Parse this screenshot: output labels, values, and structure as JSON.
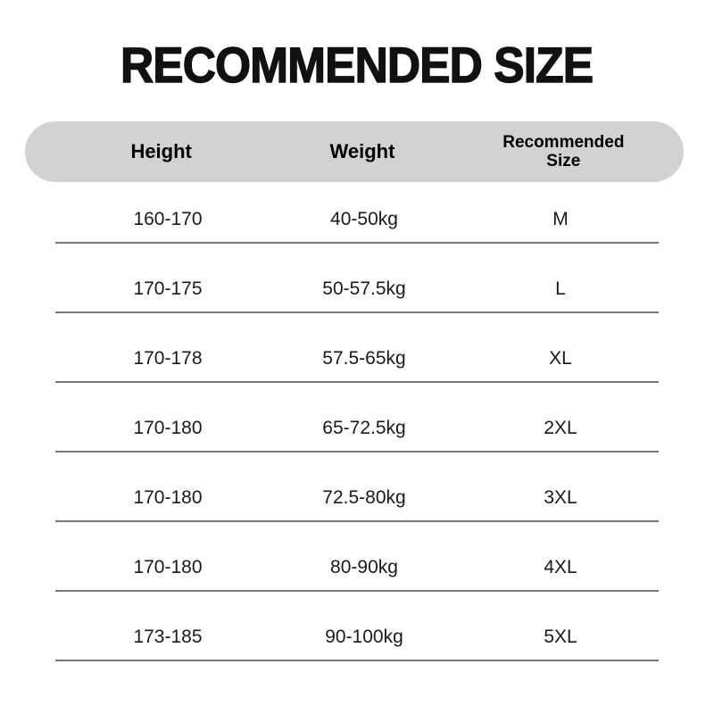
{
  "title": "RECOMMENDED SIZE",
  "table": {
    "columns": [
      "Height",
      "Weight",
      "Recommended\nSize"
    ],
    "rows": [
      {
        "height": "160-170",
        "weight": "40-50kg",
        "size": "M"
      },
      {
        "height": "170-175",
        "weight": "50-57.5kg",
        "size": "L"
      },
      {
        "height": "170-178",
        "weight": "57.5-65kg",
        "size": "XL"
      },
      {
        "height": "170-180",
        "weight": "65-72.5kg",
        "size": "2XL"
      },
      {
        "height": "170-180",
        "weight": "72.5-80kg",
        "size": "3XL"
      },
      {
        "height": "170-180",
        "weight": "80-90kg",
        "size": "4XL"
      },
      {
        "height": "173-185",
        "weight": "90-100kg",
        "size": "5XL"
      }
    ]
  },
  "colors": {
    "background": "#ffffff",
    "title_text": "#111111",
    "header_pill_bg": "#d2d2d2",
    "header_text": "#000000",
    "cell_text": "#1a1a1a",
    "row_divider": "#787878"
  },
  "chart_data": {
    "type": "table",
    "title": "RECOMMENDED SIZE",
    "columns": [
      "Height",
      "Weight",
      "Recommended Size"
    ],
    "rows": [
      [
        "160-170",
        "40-50kg",
        "M"
      ],
      [
        "170-175",
        "50-57.5kg",
        "L"
      ],
      [
        "170-178",
        "57.5-65kg",
        "XL"
      ],
      [
        "170-180",
        "65-72.5kg",
        "2XL"
      ],
      [
        "170-180",
        "72.5-80kg",
        "3XL"
      ],
      [
        "170-180",
        "80-90kg",
        "4XL"
      ],
      [
        "173-185",
        "90-100kg",
        "5XL"
      ]
    ]
  }
}
